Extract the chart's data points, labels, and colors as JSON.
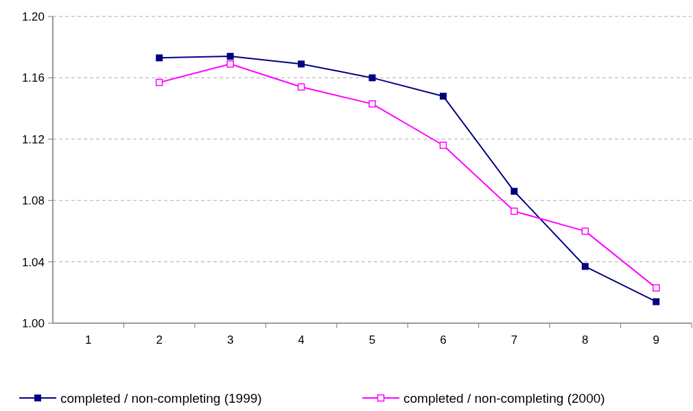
{
  "chart_data": {
    "type": "line",
    "categories": [
      "1",
      "2",
      "3",
      "4",
      "5",
      "6",
      "7",
      "8",
      "9"
    ],
    "series": [
      {
        "name": "completed / non-completing (1999)",
        "color": "#000080",
        "marker": "square",
        "values": [
          null,
          1.173,
          1.174,
          1.169,
          1.16,
          1.148,
          1.086,
          1.037,
          1.014
        ]
      },
      {
        "name": "completed / non-completing (2000)",
        "color": "#ff00ff",
        "marker": "square_open",
        "values": [
          null,
          1.157,
          1.169,
          1.154,
          1.143,
          1.116,
          1.073,
          1.06,
          1.023
        ]
      }
    ],
    "ylim": [
      1.0,
      1.2
    ],
    "yticks": [
      {
        "value": 1.0,
        "label": "1.00"
      },
      {
        "value": 1.04,
        "label": "1.04"
      },
      {
        "value": 1.08,
        "label": "1.08"
      },
      {
        "value": 1.12,
        "label": "1.12"
      },
      {
        "value": 1.16,
        "label": "1.16"
      },
      {
        "value": 1.2,
        "label": "1.20"
      }
    ],
    "grid": "y",
    "legend": "bottom",
    "line_style": "solid"
  }
}
